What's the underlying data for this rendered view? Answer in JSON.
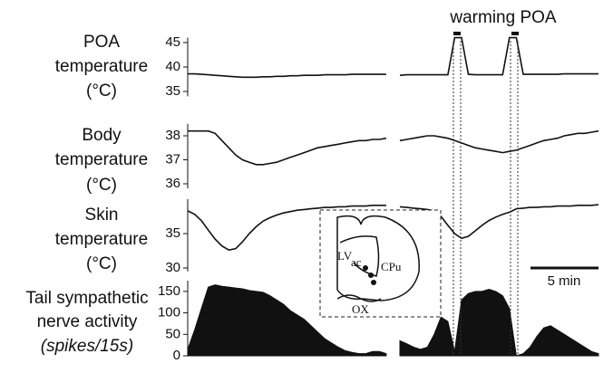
{
  "chart_data": [
    {
      "type": "line",
      "label": [
        "POA",
        "temperature",
        "(°C)"
      ],
      "ylim": [
        34,
        46
      ],
      "yticks": [
        35,
        40,
        45
      ],
      "color": "#111111",
      "values": [
        38.6,
        38.6,
        38.5,
        38.4,
        38.3,
        38.2,
        38.1,
        38.0,
        37.9,
        37.9,
        37.9,
        38.0,
        38.0,
        38.1,
        38.1,
        38.2,
        38.2,
        38.3,
        38.3,
        38.3,
        38.4,
        38.4,
        38.4,
        38.4,
        38.5,
        38.5,
        38.5,
        38.5,
        38.5,
        38.5,
        null,
        38.3,
        38.4,
        38.4,
        38.4,
        38.4,
        38.4,
        38.4,
        38.4,
        46,
        46,
        38.5,
        38.4,
        38.4,
        38.4,
        38.4,
        38.4,
        46,
        46,
        38.5,
        38.5,
        38.5,
        38.5,
        38.5,
        38.5,
        38.6,
        38.6,
        38.6,
        38.6,
        38.6,
        38.6
      ]
    },
    {
      "type": "line",
      "label": [
        "Body",
        "temperature",
        "(°C)"
      ],
      "ylim": [
        35.8,
        38.5
      ],
      "yticks": [
        36,
        37,
        38
      ],
      "color": "#111111",
      "values": [
        38.2,
        38.2,
        38.2,
        38.2,
        38.1,
        37.8,
        37.5,
        37.2,
        37.0,
        36.9,
        36.8,
        36.8,
        36.85,
        36.9,
        37.0,
        37.1,
        37.2,
        37.3,
        37.4,
        37.5,
        37.55,
        37.6,
        37.65,
        37.7,
        37.75,
        37.8,
        37.8,
        37.85,
        37.85,
        37.9,
        null,
        37.8,
        37.85,
        37.9,
        37.95,
        38.0,
        38.0,
        37.95,
        37.9,
        37.8,
        37.7,
        37.6,
        37.5,
        37.45,
        37.4,
        37.35,
        37.3,
        37.35,
        37.4,
        37.5,
        37.6,
        37.7,
        37.8,
        37.85,
        37.9,
        38.0,
        38.05,
        38.1,
        38.1,
        38.15,
        38.2
      ]
    },
    {
      "type": "line",
      "label": [
        "Skin",
        "temperature",
        "(°C)"
      ],
      "ylim": [
        29.5,
        40
      ],
      "yticks": [
        30,
        35
      ],
      "color": "#111111",
      "values": [
        38.3,
        37.8,
        36.9,
        35.5,
        34.2,
        33.2,
        32.6,
        32.8,
        33.8,
        35.0,
        36.0,
        36.8,
        37.3,
        37.7,
        38.0,
        38.2,
        38.4,
        38.5,
        38.6,
        38.7,
        38.8,
        38.8,
        38.9,
        38.9,
        39.0,
        39.0,
        39.0,
        39.1,
        39.1,
        39.1,
        null,
        38.9,
        38.8,
        38.7,
        38.6,
        38.5,
        38.3,
        37.5,
        36.2,
        35.0,
        34.3,
        34.6,
        35.4,
        36.2,
        36.9,
        37.4,
        37.8,
        38.1,
        38.6,
        38.7,
        38.8,
        38.8,
        38.9,
        38.9,
        39.0,
        39.0,
        39.0,
        39.1,
        39.1,
        39.1,
        39.2
      ]
    },
    {
      "type": "area",
      "label": [
        "Tail sympathetic",
        "nerve activity",
        "(spikes/15s)"
      ],
      "ylim": [
        0,
        175
      ],
      "yticks": [
        0,
        50,
        100,
        150
      ],
      "color": "#111111",
      "values": [
        15,
        60,
        110,
        160,
        165,
        162,
        160,
        158,
        156,
        152,
        150,
        148,
        140,
        130,
        120,
        105,
        95,
        85,
        70,
        55,
        40,
        30,
        20,
        12,
        8,
        5,
        5,
        10,
        10,
        5,
        null,
        35,
        28,
        20,
        15,
        20,
        50,
        90,
        80,
        10,
        130,
        145,
        150,
        150,
        155,
        150,
        140,
        110,
        0,
        5,
        20,
        45,
        65,
        70,
        60,
        50,
        40,
        30,
        20,
        10,
        5
      ]
    }
  ],
  "annotations": {
    "warming": "warming POA",
    "scale_bar": "5 min",
    "inset_labels": [
      "LV",
      "ac",
      "CPu",
      "OX"
    ]
  }
}
